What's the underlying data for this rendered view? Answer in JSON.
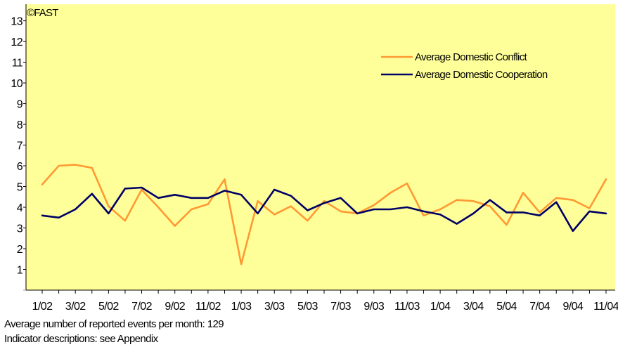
{
  "chart_data": {
    "type": "line",
    "title": "",
    "copyright": "©FAST",
    "xlabel": "",
    "ylabel": "",
    "ylim": [
      0,
      13.8
    ],
    "yticks": [
      1,
      2,
      3,
      4,
      5,
      6,
      7,
      8,
      9,
      10,
      11,
      12,
      13
    ],
    "x": [
      "1/02",
      "2/02",
      "3/02",
      "4/02",
      "5/02",
      "6/02",
      "7/02",
      "8/02",
      "9/02",
      "10/02",
      "11/02",
      "12/02",
      "1/03",
      "2/03",
      "3/03",
      "4/03",
      "5/03",
      "6/03",
      "7/03",
      "8/03",
      "9/03",
      "10/03",
      "11/03",
      "12/03",
      "1/04",
      "2/04",
      "3/04",
      "4/04",
      "5/04",
      "6/04",
      "7/04",
      "8/04",
      "9/04",
      "10/04",
      "11/04"
    ],
    "xtick_labels": [
      "1/02",
      "3/02",
      "5/02",
      "7/02",
      "9/02",
      "11/02",
      "1/03",
      "3/03",
      "5/03",
      "7/03",
      "9/03",
      "11/03",
      "1/04",
      "3/04",
      "5/04",
      "7/04",
      "9/04",
      "11/04"
    ],
    "grid": false,
    "legend_position": "top-right",
    "background_color": "#FFFF99",
    "series": [
      {
        "name": "Average Domestic Conflict",
        "color": "#FF9933",
        "values": [
          5.1,
          6.0,
          6.05,
          5.9,
          4.05,
          3.35,
          4.85,
          4.0,
          3.1,
          3.9,
          4.15,
          5.35,
          1.25,
          4.3,
          3.65,
          4.05,
          3.35,
          4.3,
          3.8,
          3.7,
          4.1,
          4.7,
          5.15,
          3.6,
          3.9,
          4.35,
          4.3,
          4.05,
          3.15,
          4.7,
          3.75,
          4.45,
          4.35,
          3.95,
          5.35
        ]
      },
      {
        "name": "Average Domestic Cooperation",
        "color": "#000066",
        "values": [
          3.6,
          3.5,
          3.9,
          4.65,
          3.7,
          4.9,
          4.95,
          4.45,
          4.6,
          4.45,
          4.45,
          4.8,
          4.6,
          3.7,
          4.85,
          4.55,
          3.85,
          4.2,
          4.45,
          3.7,
          3.9,
          3.9,
          4.0,
          3.8,
          3.65,
          3.2,
          3.7,
          4.35,
          3.75,
          3.75,
          3.6,
          4.25,
          2.85,
          3.8,
          3.7
        ]
      }
    ]
  },
  "footnotes": {
    "line1": "Average number of reported events per month: 129",
    "line2": "Indicator descriptions: see Appendix"
  }
}
